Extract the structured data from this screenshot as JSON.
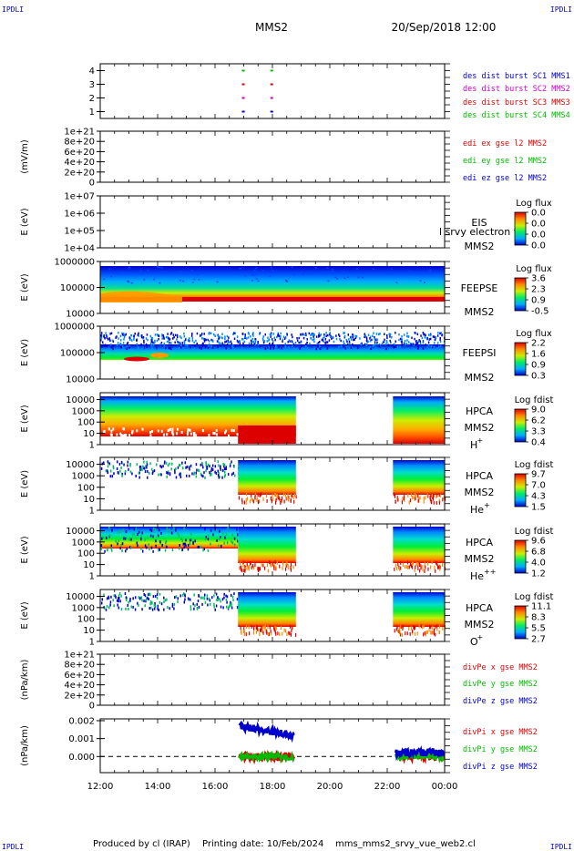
{
  "corner_label": "IPDLI",
  "header": {
    "spacecraft": "MMS2",
    "datetime": "20/Sep/2018 12:00"
  },
  "footer": {
    "produced_by": "Produced by cl (IRAP)",
    "printing_date": "Printing date: 10/Feb/2024",
    "script_name": "mms_mms2_srvy_vue_web2.cl"
  },
  "time_axis": {
    "ticks": [
      "12:00",
      "14:00",
      "16:00",
      "18:00",
      "20:00",
      "22:00",
      "00:00"
    ],
    "range_hours": [
      12,
      24
    ]
  },
  "colors": {
    "mms1": "#0000cc",
    "mms2": "#cc00cc",
    "mms3": "#dd0000",
    "mms4": "#00bb00",
    "x_component": "#dd0000",
    "y_component": "#00bb00",
    "z_component": "#0000cc"
  },
  "chart_data": [
    {
      "type": "scatter",
      "panel": "burst_intervals",
      "ylabel": "",
      "yticks": [
        "1",
        "2",
        "3",
        "4"
      ],
      "ylim": [
        0.5,
        4.5
      ],
      "series": [
        {
          "name": "des dist burst SC1 MMS1",
          "color": "#0000cc",
          "y": 1,
          "x": [
            16.97,
            17.96
          ]
        },
        {
          "name": "des dist burst SC2 MMS2",
          "color": "#cc00cc",
          "y": 2,
          "x": [
            16.97,
            17.96
          ]
        },
        {
          "name": "des dist burst SC3 MMS3",
          "color": "#dd0000",
          "y": 3,
          "x": [
            16.97,
            17.96
          ]
        },
        {
          "name": "des dist burst SC4 MMS4",
          "color": "#00bb00",
          "y": 4,
          "x": [
            16.97,
            17.96
          ]
        }
      ]
    },
    {
      "type": "line",
      "panel": "edi_efield",
      "ylabel": "(mV/m)",
      "yticks": [
        "0",
        "2e+20",
        "4e+20",
        "6e+20",
        "8e+20",
        "1e+21"
      ],
      "ylim": [
        0,
        1e+21
      ],
      "series": [
        {
          "name": "edi ex gse l2 MMS2",
          "color": "#dd0000"
        },
        {
          "name": "edi ey gse l2 MMS2",
          "color": "#00bb00"
        },
        {
          "name": "edi ez gse l2 MMS2",
          "color": "#0000cc"
        }
      ]
    },
    {
      "type": "heatmap",
      "panel": "eis",
      "ylabel": "E (eV)",
      "yticks": [
        "1e+04",
        "1e+05",
        "1e+06",
        "1e+07"
      ],
      "ylim": [
        10000,
        10000000
      ],
      "yscale": "log",
      "labels": [
        "EIS",
        "MMS2"
      ],
      "overlay_text": "l srvy electron to",
      "colorbar_title": "Log flux",
      "colorbar_ticks": [
        "0.0",
        "0.0",
        "0.0",
        "0.0"
      ]
    },
    {
      "type": "heatmap",
      "panel": "feeps_electron",
      "ylabel": "E (eV)",
      "yticks": [
        "10000",
        "100000",
        "1000000"
      ],
      "ylim": [
        10000,
        1000000
      ],
      "yscale": "log",
      "labels": [
        "FEEPSE",
        "MMS2"
      ],
      "colorbar_title": "Log flux",
      "colorbar_ticks": [
        "3.6",
        "2.3",
        "0.9",
        "-0.5"
      ]
    },
    {
      "type": "heatmap",
      "panel": "feeps_ion",
      "ylabel": "E (eV)",
      "yticks": [
        "10000",
        "100000",
        "1000000"
      ],
      "ylim": [
        10000,
        1000000
      ],
      "yscale": "log",
      "labels": [
        "FEEPSI",
        "MMS2"
      ],
      "colorbar_title": "Log flux",
      "colorbar_ticks": [
        "2.2",
        "1.6",
        "0.9",
        "0.3"
      ]
    },
    {
      "type": "heatmap",
      "panel": "hpca_h",
      "ylabel": "E (eV)",
      "yticks": [
        "1",
        "10",
        "100",
        "1000",
        "10000"
      ],
      "ylim": [
        1,
        40000
      ],
      "yscale": "log",
      "labels": [
        "HPCA",
        "MMS2"
      ],
      "species": "H",
      "charge": "+",
      "colorbar_title": "Log fdist",
      "colorbar_ticks": [
        "9.0",
        "6.2",
        "3.3",
        "0.4"
      ]
    },
    {
      "type": "heatmap",
      "panel": "hpca_he",
      "ylabel": "E (eV)",
      "yticks": [
        "1",
        "10",
        "100",
        "1000",
        "10000"
      ],
      "ylim": [
        1,
        40000
      ],
      "yscale": "log",
      "labels": [
        "HPCA",
        "MMS2"
      ],
      "species": "He",
      "charge": "+",
      "colorbar_title": "Log fdist",
      "colorbar_ticks": [
        "9.7",
        "7.0",
        "4.3",
        "1.5"
      ]
    },
    {
      "type": "heatmap",
      "panel": "hpca_hepp",
      "ylabel": "E (eV)",
      "yticks": [
        "1",
        "10",
        "100",
        "1000",
        "10000"
      ],
      "ylim": [
        1,
        40000
      ],
      "yscale": "log",
      "labels": [
        "HPCA",
        "MMS2"
      ],
      "species": "He",
      "charge": "++",
      "colorbar_title": "Log fdist",
      "colorbar_ticks": [
        "9.6",
        "6.8",
        "4.0",
        "1.2"
      ]
    },
    {
      "type": "heatmap",
      "panel": "hpca_o",
      "ylabel": "E (eV)",
      "yticks": [
        "1",
        "10",
        "100",
        "1000",
        "10000"
      ],
      "ylim": [
        1,
        40000
      ],
      "yscale": "log",
      "labels": [
        "HPCA",
        "MMS2"
      ],
      "species": "O",
      "charge": "+",
      "colorbar_title": "Log fdist",
      "colorbar_ticks": [
        "11.1",
        "8.3",
        "5.5",
        "2.7"
      ]
    },
    {
      "type": "line",
      "panel": "div_pe",
      "ylabel": "(nPa/km)",
      "yticks": [
        "0",
        "2e+20",
        "4e+20",
        "6e+20",
        "8e+20",
        "1e+21"
      ],
      "ylim": [
        0,
        1e+21
      ],
      "series": [
        {
          "name": "divPe x gse MMS2",
          "color": "#dd0000"
        },
        {
          "name": "divPe y gse MMS2",
          "color": "#00bb00"
        },
        {
          "name": "divPe z gse MMS2",
          "color": "#0000cc"
        }
      ]
    },
    {
      "type": "line",
      "panel": "div_pi",
      "ylabel": "(nPa/km)",
      "yticks": [
        "0.000",
        "0.001",
        "0.002"
      ],
      "ylim": [
        -0.0009,
        0.0021
      ],
      "series": [
        {
          "name": "divPi x gse MMS2",
          "color": "#dd0000",
          "segments": [
            {
              "x": [
                16.85,
                18.75
              ],
              "y": 0.0
            },
            {
              "x": [
                22.3,
                23.95
              ],
              "y": 0.0
            }
          ]
        },
        {
          "name": "divPi y gse MMS2",
          "color": "#00bb00",
          "segments": [
            {
              "x": [
                16.85,
                18.75
              ],
              "y": 0.0
            },
            {
              "x": [
                22.3,
                23.95
              ],
              "y": 0.0
            }
          ]
        },
        {
          "name": "divPi z gse MMS2",
          "color": "#0000cc",
          "segments": [
            {
              "x": [
                16.85,
                18.75
              ],
              "y_start": 0.0017,
              "y_end": 0.0012
            },
            {
              "x": [
                22.3,
                23.95
              ],
              "y": 0.0002
            }
          ]
        }
      ]
    }
  ]
}
